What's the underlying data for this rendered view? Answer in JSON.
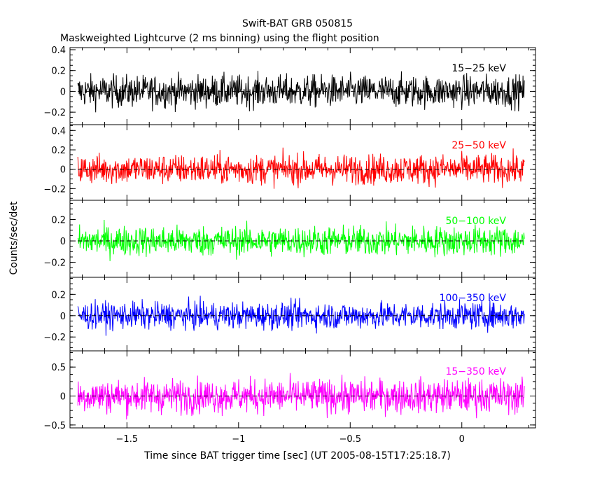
{
  "chart_data": {
    "type": "line",
    "title": "Swift-BAT GRB 050815",
    "subtitle": "Maskweighted Lightcurve (2 ms binning) using the flight position",
    "xlabel": "Time since BAT trigger time [sec] (UT 2005-08-15T17:25:18.7)",
    "ylabel": "Counts/sec/det",
    "xlim": [
      -1.755,
      0.33
    ],
    "x_range_of_data": [
      -1.72,
      0.28
    ],
    "x_ticks": [
      -1.5,
      -1,
      -0.5,
      0
    ],
    "x_tick_labels": [
      "−1.5",
      "−1",
      "−0.5",
      "0"
    ],
    "grid": false,
    "panels": [
      {
        "name": "15−25 keV",
        "color": "#000000",
        "ylim": [
          -0.32,
          0.42
        ],
        "y_ticks": [
          -0.2,
          0,
          0.2,
          0.4
        ],
        "y_tick_labels": [
          "−0.2",
          "0",
          "0.2",
          "0.4"
        ],
        "noise_sigma": 0.11,
        "baseline": 0.0
      },
      {
        "name": "25−50 keV",
        "color": "#ff0000",
        "ylim": [
          -0.32,
          0.46
        ],
        "y_ticks": [
          -0.2,
          0,
          0.2,
          0.4
        ],
        "y_tick_labels": [
          "−0.2",
          "0",
          "0.2",
          "0.4"
        ],
        "noise_sigma": 0.11,
        "baseline": 0.0
      },
      {
        "name": "50−100 keV",
        "color": "#00ff00",
        "ylim": [
          -0.34,
          0.38
        ],
        "y_ticks": [
          -0.2,
          0,
          0.2
        ],
        "y_tick_labels": [
          "−0.2",
          "0",
          "0.2"
        ],
        "noise_sigma": 0.1,
        "baseline": 0.0
      },
      {
        "name": "100−350 keV",
        "color": "#0000ff",
        "ylim": [
          -0.33,
          0.36
        ],
        "y_ticks": [
          -0.2,
          0,
          0.2
        ],
        "y_tick_labels": [
          "−0.2",
          "0",
          "0.2"
        ],
        "noise_sigma": 0.09,
        "baseline": 0.0
      },
      {
        "name": "15−350 keV",
        "color": "#ff00ff",
        "ylim": [
          -0.55,
          0.78
        ],
        "y_ticks": [
          -0.5,
          0,
          0.5
        ],
        "y_tick_labels": [
          "−0.5",
          "0",
          "0.5"
        ],
        "noise_sigma": 0.21,
        "baseline": 0.0
      }
    ]
  }
}
